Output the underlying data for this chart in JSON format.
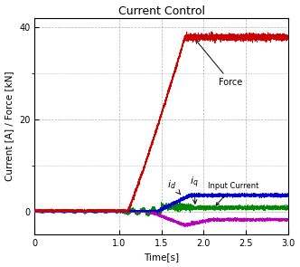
{
  "title": "Current Control",
  "xlabel": "Time[s]",
  "ylabel": "Current [A] / Force [kN]",
  "xlim": [
    0,
    3.0
  ],
  "ylim": [
    -5,
    42
  ],
  "yticks": [
    0,
    20,
    40
  ],
  "xticks": [
    0,
    1.0,
    1.5,
    2.0,
    2.5,
    3.0
  ],
  "xticklabels": [
    "0",
    "1.0",
    "1.5",
    "2.0",
    "2.5",
    "3.0"
  ],
  "force_color": "#cc0000",
  "id_color": "#0000cc",
  "iq_color": "#008800",
  "input_color": "#bb00bb",
  "figsize": [
    3.32,
    2.95
  ],
  "dpi": 100,
  "background_color": "#ffffff",
  "grid_color": "#999999",
  "title_fontsize": 9,
  "label_fontsize": 7.5,
  "tick_fontsize": 7,
  "force_start": 1.1,
  "force_end": 1.78,
  "force_level": 37.8,
  "id_settle": 3.5,
  "iq_settle": 0.8,
  "input_settle": -1.8,
  "input_dip": -3.0
}
